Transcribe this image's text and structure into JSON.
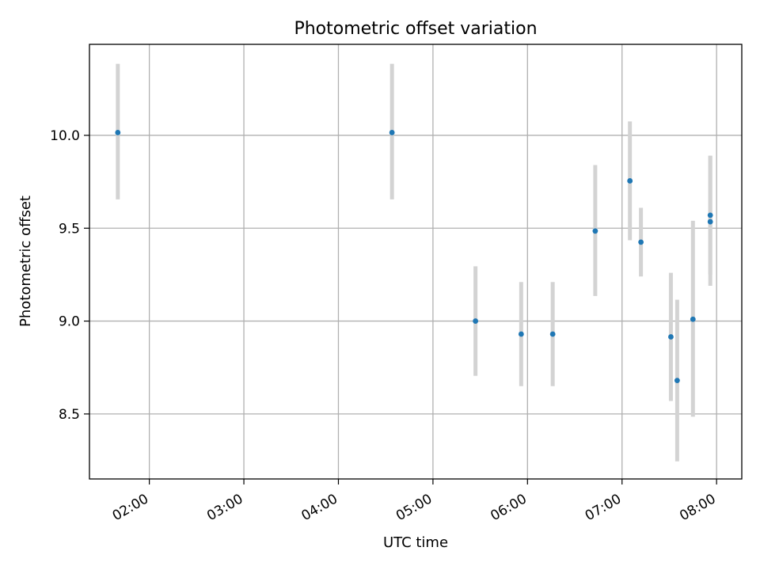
{
  "chart_data": {
    "type": "scatter",
    "title": "Photometric offset variation",
    "xlabel": "UTC time",
    "ylabel": "Photometric offset",
    "x_tick_labels": [
      "02:00",
      "03:00",
      "04:00",
      "05:00",
      "06:00",
      "07:00",
      "08:00"
    ],
    "x_ticks": [
      "02:00",
      "03:00",
      "04:00",
      "05:00",
      "06:00",
      "07:00",
      "08:00"
    ],
    "y_ticks": [
      8.5,
      9.0,
      9.5,
      10.0
    ],
    "y_tick_labels": [
      "8.5",
      "9.0",
      "9.5",
      "10.0"
    ],
    "xlim": [
      "01:22",
      "08:16"
    ],
    "ylim": [
      8.15,
      10.49
    ],
    "grid": true,
    "marker_color": "#1f77b4",
    "errorbar_color": "#d3d3d3",
    "points": [
      {
        "time": "01:40",
        "value": 10.015,
        "err_low": 9.655,
        "err_high": 10.385
      },
      {
        "time": "04:34",
        "value": 10.015,
        "err_low": 9.655,
        "err_high": 10.385
      },
      {
        "time": "05:27",
        "value": 9.0,
        "err_low": 8.705,
        "err_high": 9.295
      },
      {
        "time": "05:56",
        "value": 8.93,
        "err_low": 8.65,
        "err_high": 9.21
      },
      {
        "time": "06:16",
        "value": 8.93,
        "err_low": 8.65,
        "err_high": 9.21
      },
      {
        "time": "06:43",
        "value": 9.485,
        "err_low": 9.135,
        "err_high": 9.84
      },
      {
        "time": "07:05",
        "value": 9.755,
        "err_low": 9.435,
        "err_high": 10.075
      },
      {
        "time": "07:12",
        "value": 9.425,
        "err_low": 9.24,
        "err_high": 9.61
      },
      {
        "time": "07:31",
        "value": 8.915,
        "err_low": 8.57,
        "err_high": 9.26
      },
      {
        "time": "07:35",
        "value": 8.68,
        "err_low": 8.245,
        "err_high": 9.115
      },
      {
        "time": "07:45",
        "value": 9.01,
        "err_low": 8.485,
        "err_high": 9.54
      },
      {
        "time": "07:56",
        "value": 9.535,
        "err_low": 9.19,
        "err_high": 9.89
      },
      {
        "time": "07:56",
        "value": 9.57,
        "err_low": 9.25,
        "err_high": 9.89
      }
    ]
  }
}
